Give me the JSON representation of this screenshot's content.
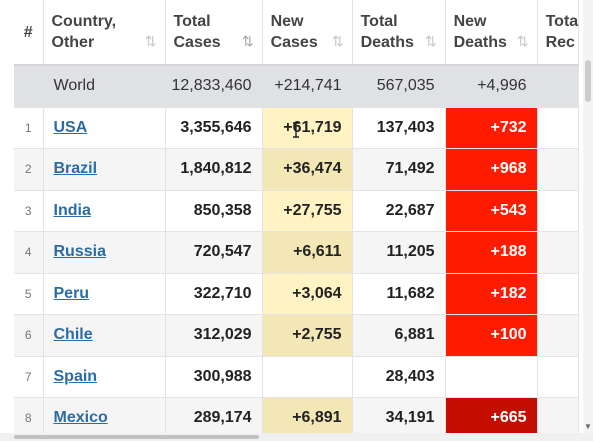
{
  "header": {
    "hash": "#",
    "country": [
      "Country,",
      "Other"
    ],
    "total_cases": [
      "Total",
      "Cases"
    ],
    "new_cases": [
      "New",
      "Cases"
    ],
    "total_deaths": [
      "Total",
      "Deaths"
    ],
    "new_deaths": [
      "New",
      "Deaths"
    ],
    "total_rec": [
      "Tota",
      "Rec"
    ]
  },
  "sort_icons": {
    "default": "⇅",
    "active": "⇅"
  },
  "world": {
    "country": "World",
    "total_cases": "12,833,460",
    "new_cases": "+214,741",
    "total_deaths": "567,035",
    "new_deaths": "+4,996"
  },
  "rows": [
    {
      "idx": "1",
      "country": "USA",
      "total_cases": "3,355,646",
      "new_cases": "+61,719",
      "total_deaths": "137,403",
      "new_deaths": "+732"
    },
    {
      "idx": "2",
      "country": "Brazil",
      "total_cases": "1,840,812",
      "new_cases": "+36,474",
      "total_deaths": "71,492",
      "new_deaths": "+968"
    },
    {
      "idx": "3",
      "country": "India",
      "total_cases": "850,358",
      "new_cases": "+27,755",
      "total_deaths": "22,687",
      "new_deaths": "+543"
    },
    {
      "idx": "4",
      "country": "Russia",
      "total_cases": "720,547",
      "new_cases": "+6,611",
      "total_deaths": "11,205",
      "new_deaths": "+188"
    },
    {
      "idx": "5",
      "country": "Peru",
      "total_cases": "322,710",
      "new_cases": "+3,064",
      "total_deaths": "11,682",
      "new_deaths": "+182"
    },
    {
      "idx": "6",
      "country": "Chile",
      "total_cases": "312,029",
      "new_cases": "+2,755",
      "total_deaths": "6,881",
      "new_deaths": "+100"
    },
    {
      "idx": "7",
      "country": "Spain",
      "total_cases": "300,988",
      "new_cases": "",
      "total_deaths": "28,403",
      "new_deaths": ""
    },
    {
      "idx": "8",
      "country": "Mexico",
      "total_cases": "289,174",
      "new_cases": "+6,891",
      "total_deaths": "34,191",
      "new_deaths": "+665"
    }
  ],
  "colors": {
    "new_cases_bg": "#fff3c4",
    "new_deaths_bg": "#ff1b00",
    "world_bg": "#dfe1e4",
    "link": "#2a6ca5"
  }
}
